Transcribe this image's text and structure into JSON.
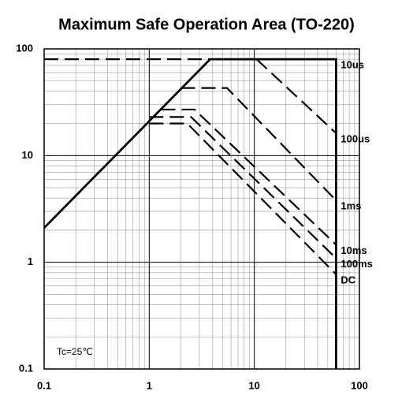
{
  "chart_data": {
    "type": "line",
    "title": "Maximum Safe Operation Area (TO-220)",
    "annotation": "Tc=25℃",
    "xscale": "log",
    "yscale": "log",
    "xlim": [
      0.1,
      100
    ],
    "ylim": [
      0.1,
      100
    ],
    "xticks": [
      0.1,
      1,
      10,
      100
    ],
    "yticks": [
      0.1,
      1,
      10,
      100
    ],
    "grid": true,
    "minor_grid": true,
    "series": [
      {
        "color": "#000000",
        "style": "solid",
        "x": [
          0.1,
          3.8,
          60,
          60
        ],
        "values": [
          2.1,
          80,
          80,
          0.1
        ]
      },
      {
        "name": "10us",
        "color": "#000000",
        "style": "dashed",
        "x": [
          0.1,
          60
        ],
        "values": [
          80,
          80
        ]
      },
      {
        "name": "100us",
        "color": "#000000",
        "style": "dashed",
        "x": [
          10.5,
          60
        ],
        "values": [
          80,
          16.2
        ]
      },
      {
        "name": "1ms",
        "color": "#000000",
        "style": "dashed",
        "x": [
          2,
          5.5,
          60
        ],
        "values": [
          43,
          43,
          3.8
        ]
      },
      {
        "name": "10ms",
        "color": "#000000",
        "style": "dashed",
        "x": [
          1.3,
          2.7,
          60
        ],
        "values": [
          27,
          27,
          1.46
        ]
      },
      {
        "name": "100ms",
        "color": "#000000",
        "style": "dashed",
        "x": [
          1,
          2.5,
          60
        ],
        "values": [
          23,
          23,
          1.09
        ]
      },
      {
        "name": "DC",
        "color": "#000000",
        "style": "dashed",
        "x": [
          1,
          2.3,
          60
        ],
        "values": [
          20,
          20,
          0.77
        ]
      }
    ]
  }
}
